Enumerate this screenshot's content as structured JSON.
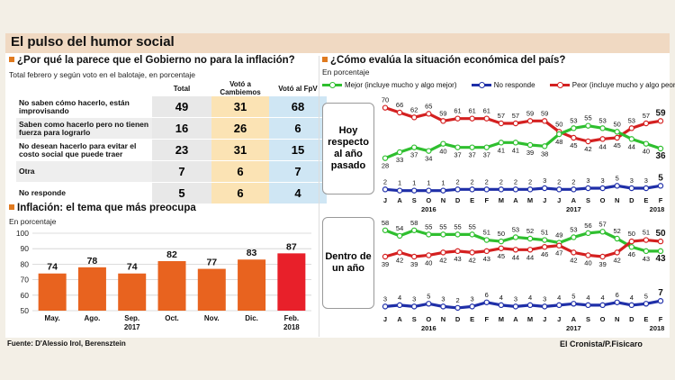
{
  "header": {
    "title": "El pulso del humor social"
  },
  "table_section": {
    "title": "¿Por qué la parece que el Gobierno no para la inflación?",
    "subtitle": "Total febrero y según voto en el balotaje, en porcentaje",
    "columns": [
      "Total",
      "Votó a Cambiemos",
      "Votó al FpV"
    ],
    "rows": [
      {
        "label": "No saben cómo hacerlo, están improvisando",
        "values": [
          "49",
          "31",
          "68"
        ]
      },
      {
        "label": "Saben como hacerlo pero no tienen fuerza para lograrlo",
        "values": [
          "16",
          "26",
          "6"
        ]
      },
      {
        "label": "No desean hacerlo para evitar el costo social que puede traer",
        "values": [
          "23",
          "31",
          "15"
        ]
      },
      {
        "label": "Otra",
        "values": [
          "7",
          "6",
          "7"
        ]
      },
      {
        "label": "No responde",
        "values": [
          "5",
          "6",
          "4"
        ]
      }
    ]
  },
  "bar_section": {
    "title": "Inflación: el tema que más preocupa",
    "subtitle": "En porcentaje",
    "year_label": "2017"
  },
  "line_section": {
    "title": "¿Cómo evalúa la situación económica del país?",
    "subtitle": "En porcentaje",
    "legend": [
      {
        "name": "Mejor (incluye mucho y algo mejor)",
        "color": "#2fbf2f"
      },
      {
        "name": "No responde",
        "color": "#1f2fa8"
      },
      {
        "name": "Peor (incluye mucho y algo peor)",
        "color": "#d42020"
      }
    ],
    "panel_labels": [
      "Hoy respecto al año pasado",
      "Dentro de un año"
    ]
  },
  "footer": {
    "source": "Fuente: D'Alessio Irol, Berensztein",
    "credit": "El Cronista/P.Fisicaro"
  },
  "chart_data": [
    {
      "type": "bar",
      "title": "Inflación: el tema que más preocupa",
      "ylabel": "En porcentaje",
      "categories": [
        "May.",
        "Ago.",
        "Sep.",
        "Oct.",
        "Nov.",
        "Dic.",
        "Feb."
      ],
      "category_years": [
        "",
        "",
        "2017",
        "",
        "",
        "",
        "2018"
      ],
      "values": [
        74,
        78,
        74,
        82,
        77,
        83,
        87
      ],
      "highlight_index": 6,
      "colors": {
        "bar": "#e8631f",
        "highlight": "#e8202a"
      },
      "ylim": [
        50,
        100
      ],
      "yticks": [
        50,
        60,
        70,
        80,
        90,
        100
      ],
      "grid": true
    },
    {
      "type": "line",
      "title": "Hoy respecto al año pasado",
      "x": [
        "J",
        "A",
        "S",
        "O",
        "N",
        "D",
        "E",
        "F",
        "M",
        "A",
        "M",
        "J",
        "J",
        "A",
        "S",
        "O",
        "N",
        "D",
        "E",
        "F"
      ],
      "year_labels": {
        "2016": 3,
        "2017": 13,
        "2018": 19
      },
      "ylim": [
        0,
        75
      ],
      "series": [
        {
          "name": "Peor (incluye mucho y algo peor)",
          "color": "#d42020",
          "values": [
            70,
            66,
            62,
            65,
            59,
            61,
            61,
            61,
            57,
            57,
            59,
            59,
            50,
            45,
            42,
            44,
            45,
            53,
            57,
            59
          ]
        },
        {
          "name": "Mejor (incluye mucho y algo mejor)",
          "color": "#2fbf2f",
          "values": [
            28,
            33,
            37,
            34,
            40,
            37,
            37,
            37,
            41,
            41,
            39,
            38,
            48,
            53,
            55,
            53,
            50,
            44,
            40,
            36
          ]
        },
        {
          "name": "No responde",
          "color": "#1f2fa8",
          "values": [
            2,
            1,
            1,
            1,
            1,
            2,
            2,
            2,
            2,
            2,
            2,
            3,
            2,
            2,
            3,
            3,
            5,
            3,
            3,
            5
          ]
        }
      ]
    },
    {
      "type": "line",
      "title": "Dentro de un año",
      "x": [
        "J",
        "A",
        "S",
        "O",
        "N",
        "D",
        "E",
        "F",
        "M",
        "A",
        "M",
        "J",
        "J",
        "A",
        "S",
        "O",
        "N",
        "D",
        "E",
        "F"
      ],
      "year_labels": {
        "2016": 3,
        "2017": 13,
        "2018": 19
      },
      "ylim": [
        0,
        65
      ],
      "series": [
        {
          "name": "Mejor (incluye mucho y algo mejor)",
          "color": "#2fbf2f",
          "values": [
            58,
            54,
            58,
            55,
            55,
            55,
            55,
            51,
            50,
            53,
            52,
            51,
            49,
            53,
            56,
            57,
            52,
            46,
            43,
            43
          ]
        },
        {
          "name": "Peor (incluye mucho y algo peor)",
          "color": "#d42020",
          "values": [
            39,
            42,
            39,
            40,
            42,
            43,
            42,
            43,
            45,
            44,
            44,
            46,
            47,
            42,
            40,
            39,
            42,
            50,
            51,
            50
          ]
        },
        {
          "name": "No responde",
          "color": "#1f2fa8",
          "values": [
            3,
            4,
            3,
            5,
            3,
            2,
            3,
            6,
            4,
            3,
            4,
            3,
            4,
            5,
            4,
            4,
            6,
            4,
            5,
            7
          ]
        }
      ]
    }
  ]
}
